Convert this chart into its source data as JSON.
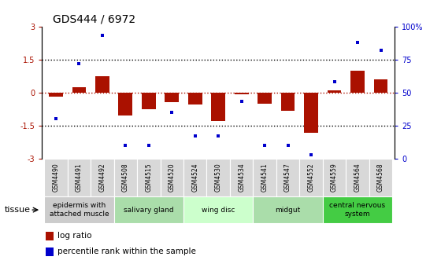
{
  "title": "GDS444 / 6972",
  "samples": [
    "GSM4490",
    "GSM4491",
    "GSM4492",
    "GSM4508",
    "GSM4515",
    "GSM4520",
    "GSM4524",
    "GSM4530",
    "GSM4534",
    "GSM4541",
    "GSM4547",
    "GSM4552",
    "GSM4559",
    "GSM4564",
    "GSM4568"
  ],
  "log_ratio": [
    -0.18,
    0.22,
    0.75,
    -1.05,
    -0.75,
    -0.45,
    -0.55,
    -1.3,
    -0.08,
    -0.5,
    -0.85,
    -1.85,
    0.08,
    1.0,
    0.6
  ],
  "percentile": [
    30,
    72,
    93,
    10,
    10,
    35,
    17,
    17,
    43,
    10,
    10,
    3,
    58,
    88,
    82
  ],
  "ylim_left": [
    -3,
    3
  ],
  "ylim_right": [
    0,
    100
  ],
  "bar_color": "#aa1100",
  "dot_color": "#0000cc",
  "tissue_groups": [
    {
      "label": "epidermis with\nattached muscle",
      "start": 0,
      "end": 3,
      "color": "#cccccc"
    },
    {
      "label": "salivary gland",
      "start": 3,
      "end": 6,
      "color": "#aaddaa"
    },
    {
      "label": "wing disc",
      "start": 6,
      "end": 9,
      "color": "#ccffcc"
    },
    {
      "label": "midgut",
      "start": 9,
      "end": 12,
      "color": "#aaddaa"
    },
    {
      "label": "central nervous\nsystem",
      "start": 12,
      "end": 15,
      "color": "#44cc44"
    }
  ]
}
